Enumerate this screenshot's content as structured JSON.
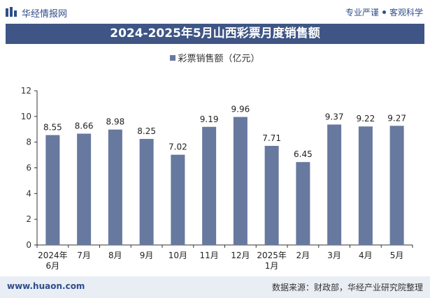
{
  "header": {
    "brand": "华经情报网",
    "tagline_left": "专业严谨",
    "tagline_right": "客观科学"
  },
  "footer": {
    "site": "www.huaon.com",
    "source": "数据来源：财政部，华经产业研究院整理"
  },
  "colors": {
    "bar": "#68799f",
    "title_bg": "#3e5585",
    "footer_bg": "#e9edf4"
  },
  "chart_data": {
    "type": "bar",
    "title": "2024-2025年5月山西彩票月度销售额",
    "categories": [
      [
        "2024年",
        "6月"
      ],
      [
        "7月"
      ],
      [
        "8月"
      ],
      [
        "9月"
      ],
      [
        "10月"
      ],
      [
        "11月"
      ],
      [
        "12月"
      ],
      [
        "2025年",
        "1月"
      ],
      [
        "2月"
      ],
      [
        "3月"
      ],
      [
        "4月"
      ],
      [
        "5月"
      ]
    ],
    "series": [
      {
        "name": "彩票销售额（亿元）",
        "values": [
          8.55,
          8.66,
          8.98,
          8.25,
          7.02,
          9.19,
          9.96,
          7.71,
          6.45,
          9.37,
          9.22,
          9.27
        ]
      }
    ],
    "y_ticks": [
      0,
      2,
      4,
      6,
      8,
      10,
      12
    ],
    "ylim": [
      0,
      12
    ],
    "grid": false,
    "legend_position": "top-center"
  }
}
